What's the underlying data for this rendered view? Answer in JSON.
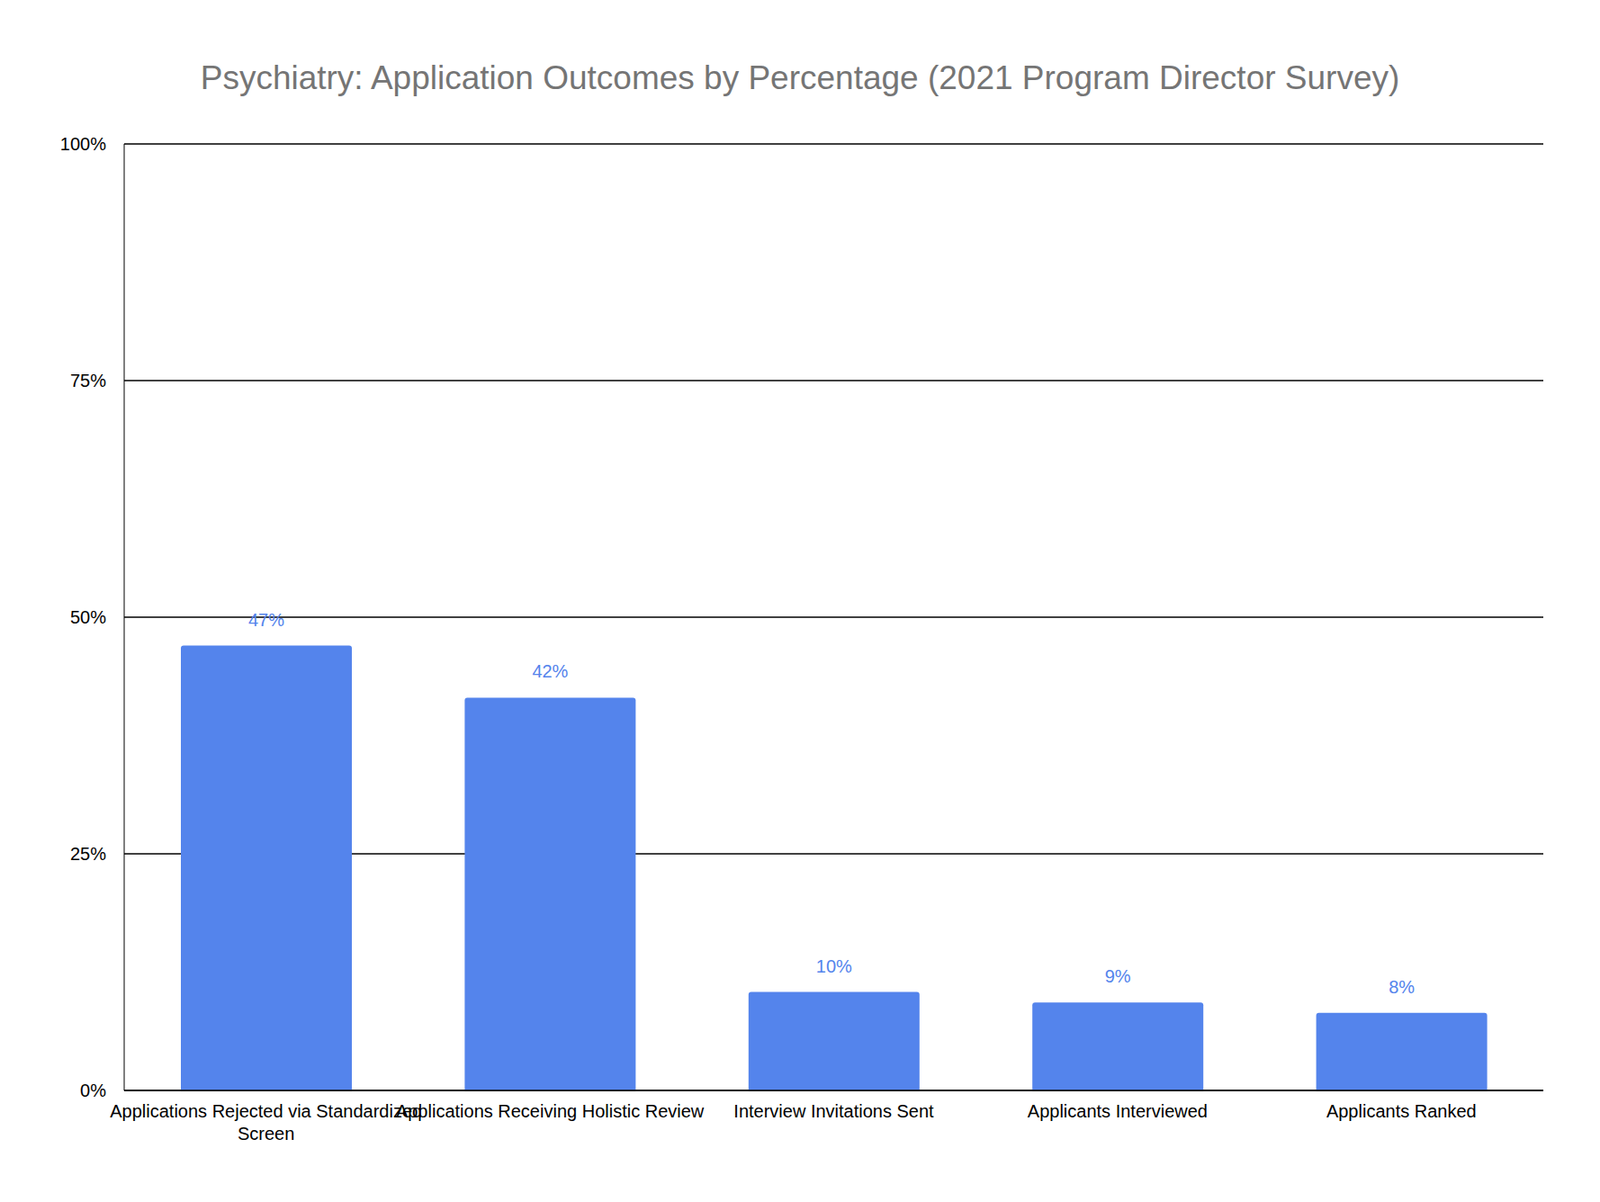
{
  "chart_data": {
    "type": "bar",
    "title": "Psychiatry: Application Outcomes by Percentage (2021 Program Director Survey)",
    "categories": [
      "Applications Rejected via Standardized Screen",
      "Applications Receiving Holistic Review",
      "Interview Invitations Sent",
      "Applicants Interviewed",
      "Applicants Ranked"
    ],
    "values": [
      47,
      41.5,
      10.4,
      9.3,
      8.2
    ],
    "value_labels": [
      "47%",
      "42%",
      "10%",
      "9%",
      "8%"
    ],
    "color": "#5484ec",
    "ylim": [
      0,
      100
    ],
    "yticks": [
      {
        "value": 0,
        "label": "0%"
      },
      {
        "value": 25,
        "label": "25%"
      },
      {
        "value": 50,
        "label": "50%"
      },
      {
        "value": 75,
        "label": "75%"
      },
      {
        "value": 100,
        "label": "100%"
      }
    ],
    "grid": true,
    "data_labels": true
  }
}
